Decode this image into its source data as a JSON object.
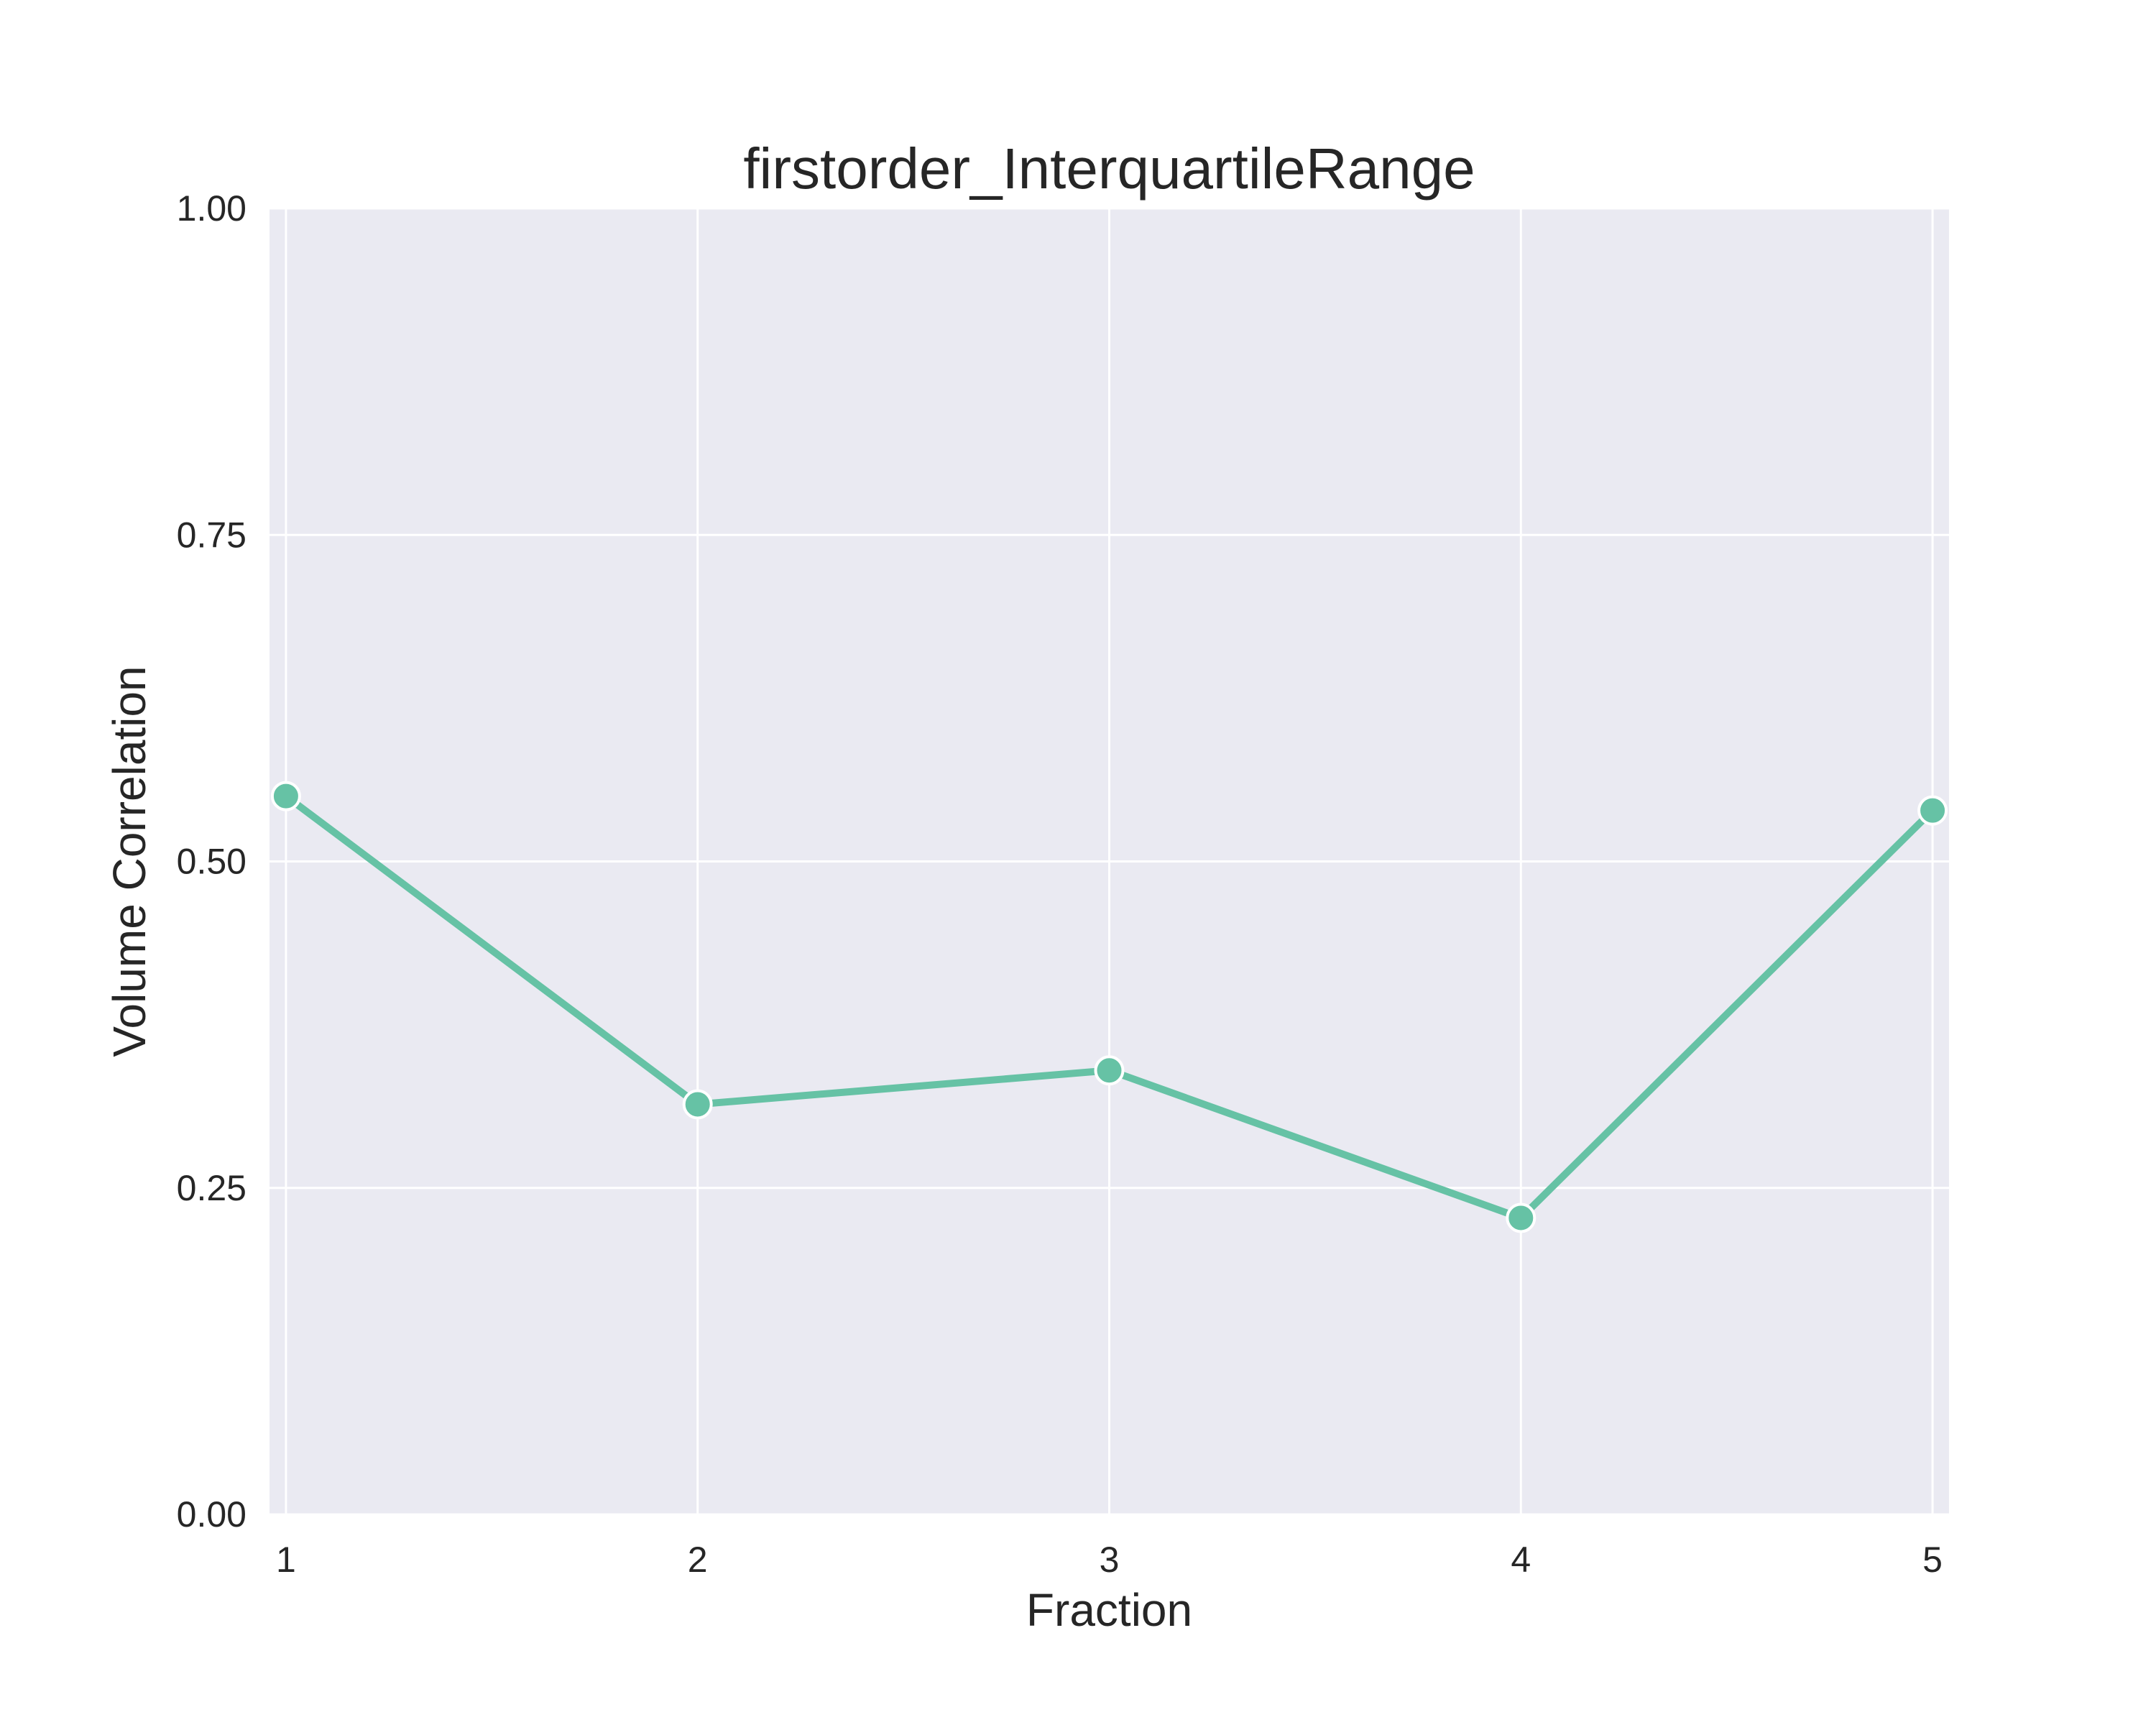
{
  "chart_data": {
    "type": "line",
    "title": "firstorder_InterquartileRange",
    "xlabel": "Fraction",
    "ylabel": "Volume Correlation",
    "x": [
      1,
      2,
      3,
      4,
      5
    ],
    "x_tick_labels": [
      "1",
      "2",
      "3",
      "4",
      "5"
    ],
    "xlim": [
      0.96,
      5.04
    ],
    "ylim": [
      0,
      1
    ],
    "y_ticks": [
      0,
      0.25,
      0.5,
      0.75,
      1
    ],
    "y_tick_labels": [
      "0.00",
      "0.25",
      "0.50",
      "0.75",
      "1.00"
    ],
    "series": [
      {
        "values": [
          0.55,
          0.314,
          0.34,
          0.227,
          0.539
        ],
        "color": "#66c2a5",
        "marker": "circle"
      }
    ],
    "grid": true,
    "legend": "none",
    "colors": {
      "plot_background": "#eaeaf2",
      "grid": "#ffffff",
      "text": "#262626"
    }
  }
}
